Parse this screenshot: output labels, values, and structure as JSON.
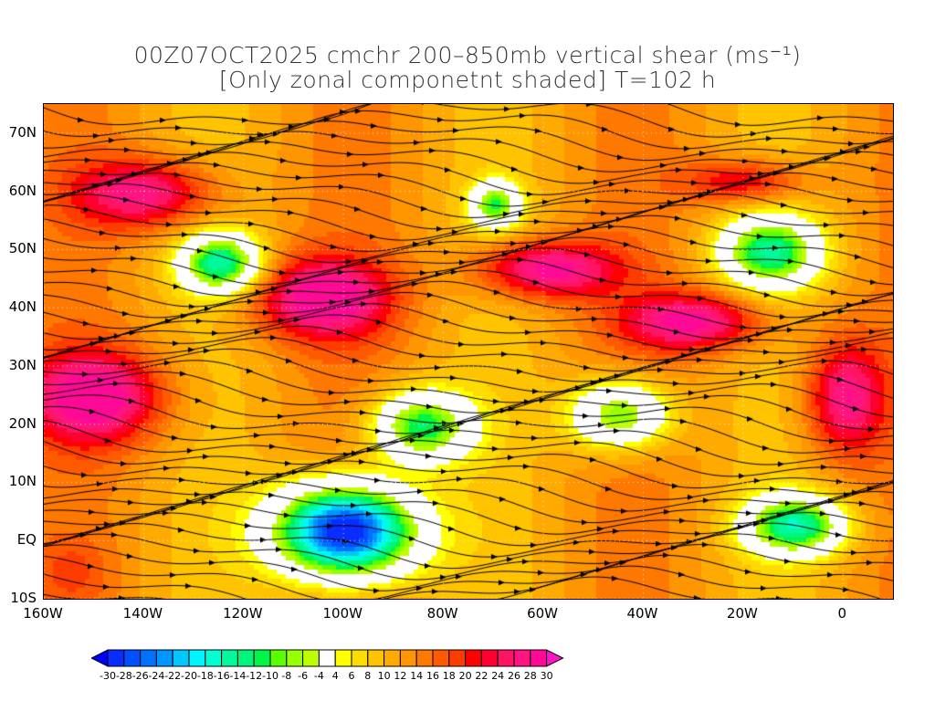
{
  "title": {
    "line1": "00Z07OCT2025 cmchr 200–850mb vertical shear (ms⁻¹)",
    "line2": "[Only zonal componetnt shaded] T=102 h"
  },
  "map": {
    "lon_range": [
      -160,
      10
    ],
    "lat_range": [
      -10,
      75
    ],
    "lat_ticks": [
      {
        "value": 70,
        "label": "70N"
      },
      {
        "value": 60,
        "label": "60N"
      },
      {
        "value": 50,
        "label": "50N"
      },
      {
        "value": 40,
        "label": "40N"
      },
      {
        "value": 30,
        "label": "30N"
      },
      {
        "value": 20,
        "label": "20N"
      },
      {
        "value": 10,
        "label": "10N"
      },
      {
        "value": 0,
        "label": "EQ"
      },
      {
        "value": -10,
        "label": "10S"
      }
    ],
    "lon_ticks": [
      {
        "value": -160,
        "label": "160W"
      },
      {
        "value": -140,
        "label": "140W"
      },
      {
        "value": -120,
        "label": "120W"
      },
      {
        "value": -100,
        "label": "100W"
      },
      {
        "value": -80,
        "label": "80W"
      },
      {
        "value": -60,
        "label": "60W"
      },
      {
        "value": -40,
        "label": "40W"
      },
      {
        "value": -20,
        "label": "20W"
      },
      {
        "value": 0,
        "label": "0"
      }
    ]
  },
  "colorbar": {
    "labels": [
      "-30",
      "-28",
      "-26",
      "-24",
      "-22",
      "-20",
      "-18",
      "-16",
      "-14",
      "-12",
      "-10",
      "-8",
      "-6",
      "-4",
      "4",
      "6",
      "8",
      "10",
      "12",
      "14",
      "16",
      "18",
      "20",
      "22",
      "24",
      "26",
      "28",
      "30"
    ],
    "low_arrow_color": "#0000ff",
    "high_arrow_color": "#ff14c8",
    "colors": [
      "#0a2dff",
      "#0050ff",
      "#0070ff",
      "#0096ff",
      "#00c8ff",
      "#00f5ff",
      "#00ffd2",
      "#00fa9b",
      "#00f57d",
      "#00f546",
      "#5aff00",
      "#96ff00",
      "#beff00",
      "#ffffff",
      "#ffff00",
      "#ffdc00",
      "#ffc300",
      "#ffaa00",
      "#ff9600",
      "#ff7800",
      "#ff5a00",
      "#ff3c00",
      "#ff0000",
      "#ff0032",
      "#ff1464",
      "#ff1480",
      "#ff0a96"
    ]
  }
}
